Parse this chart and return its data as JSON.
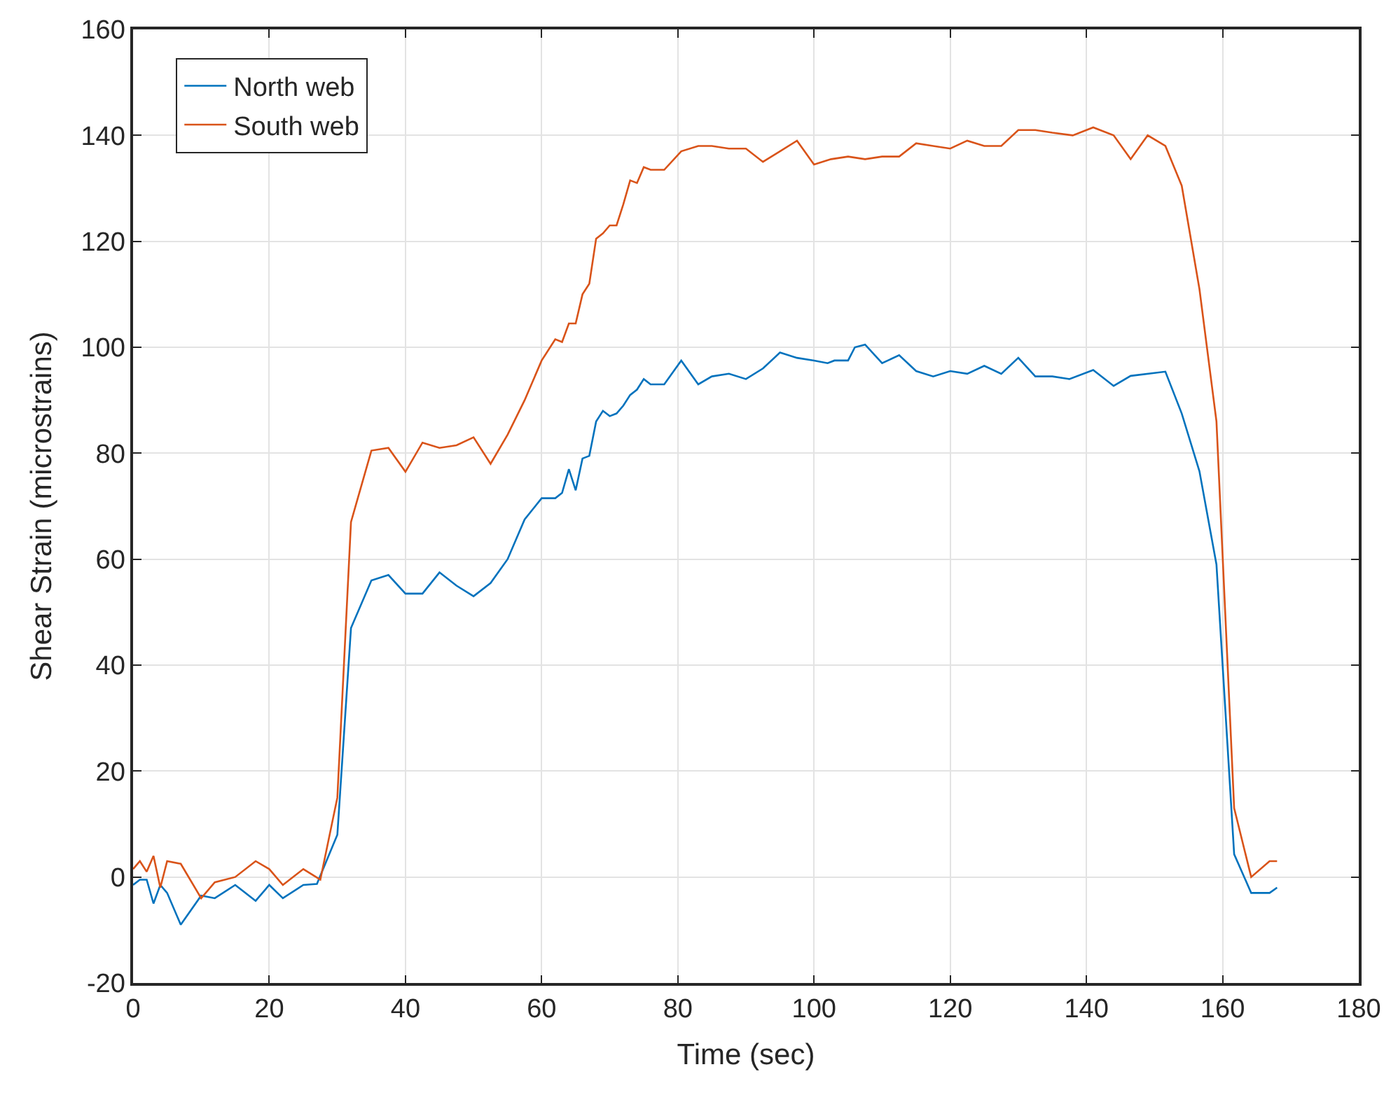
{
  "chart_data": {
    "type": "line",
    "xlabel": "Time (sec)",
    "ylabel": "Shear Strain (microstrains)",
    "xlim": [
      0,
      180
    ],
    "xticks": [
      0,
      20,
      40,
      60,
      80,
      100,
      120,
      140,
      160,
      180
    ],
    "ylim": [
      -20,
      160
    ],
    "yticks": [
      -20,
      0,
      20,
      40,
      60,
      80,
      100,
      120,
      140,
      160
    ],
    "grid": true,
    "legend": "top left",
    "line_style": "solid",
    "series": [
      {
        "name": "North web",
        "color": "#0072bd",
        "x": [
          0,
          1,
          2,
          3,
          4,
          5,
          7,
          10,
          12,
          15,
          18,
          20,
          22,
          25,
          27,
          30,
          32,
          35,
          37.5,
          40,
          42.5,
          45,
          47.5,
          50,
          52.5,
          55,
          57.5,
          60,
          62,
          63,
          64,
          65,
          66,
          67,
          68,
          69,
          70,
          71,
          72,
          73,
          74,
          75,
          76,
          78,
          80.5,
          83,
          85,
          87.5,
          90,
          92.5,
          95,
          97.5,
          100,
          102,
          103,
          105,
          106,
          107.5,
          110,
          112.5,
          115,
          117.5,
          120,
          122.5,
          125,
          127.5,
          130,
          132.5,
          135,
          137.5,
          141,
          144,
          146.5,
          151.6,
          154,
          156.6,
          159.1,
          161.7,
          164.2,
          166.9,
          168
        ],
        "values": [
          -1.5,
          -0.5,
          -0.5,
          -5,
          -1.5,
          -3,
          -9,
          -3.5,
          -4,
          -1.5,
          -4.5,
          -1.5,
          -4,
          -1.5,
          -1.3,
          8,
          47,
          56,
          57,
          53.5,
          53.5,
          57.5,
          55,
          53,
          55.5,
          60,
          67.5,
          71.5,
          71.5,
          72.5,
          77,
          73,
          79,
          79.5,
          86,
          88,
          87,
          87.5,
          89,
          91,
          92,
          94,
          93,
          93,
          97.5,
          93,
          94.5,
          95,
          94,
          96,
          99,
          98,
          97.5,
          97,
          97.5,
          97.5,
          100,
          100.5,
          97,
          98.5,
          95.5,
          94.5,
          95.5,
          95,
          96.5,
          95,
          98,
          94.5,
          94.5,
          94,
          95.7,
          92.7,
          94.6,
          95.4,
          87.5,
          76.6,
          59,
          4.3,
          -3,
          -3,
          -2
        ]
      },
      {
        "name": "South web",
        "color": "#d95319",
        "x": [
          0,
          1,
          2,
          3,
          4,
          5,
          7,
          10,
          12,
          15,
          18,
          20,
          22,
          25,
          27.5,
          30,
          32,
          35,
          37.5,
          40,
          42.5,
          45,
          47.5,
          50,
          52.5,
          55,
          57.5,
          60,
          62,
          63,
          64,
          65,
          66,
          67,
          68,
          69,
          70,
          71,
          72,
          73,
          74,
          75,
          76,
          78,
          80.5,
          83,
          85,
          87.5,
          90,
          92.5,
          95,
          97.5,
          100,
          102.5,
          105,
          107.5,
          110,
          112.5,
          115,
          117.5,
          120,
          122.5,
          125,
          127.5,
          130,
          132.5,
          135,
          138,
          141,
          144,
          146.5,
          149,
          151.6,
          154,
          156.6,
          159.1,
          161.7,
          164.2,
          166.9,
          168
        ],
        "values": [
          1.5,
          3,
          1,
          4,
          -2,
          3,
          2.5,
          -4,
          -1,
          0,
          3,
          1.5,
          -1.5,
          1.5,
          -0.5,
          15,
          67,
          80.5,
          81,
          76.5,
          82,
          81,
          81.5,
          83,
          78,
          83.5,
          90,
          97.5,
          101.5,
          101,
          104.5,
          104.5,
          110,
          112,
          120.5,
          121.5,
          123,
          123,
          127,
          131.5,
          131,
          134,
          133.5,
          133.5,
          137,
          138,
          138,
          137.5,
          137.5,
          135,
          137,
          139,
          134.5,
          135.5,
          136,
          135.5,
          136,
          136,
          138.5,
          138,
          137.5,
          139,
          138,
          138,
          141,
          141,
          140.5,
          140,
          141.5,
          140,
          135.5,
          140,
          138,
          130.5,
          111,
          86,
          13,
          0,
          3,
          3
        ]
      }
    ]
  }
}
